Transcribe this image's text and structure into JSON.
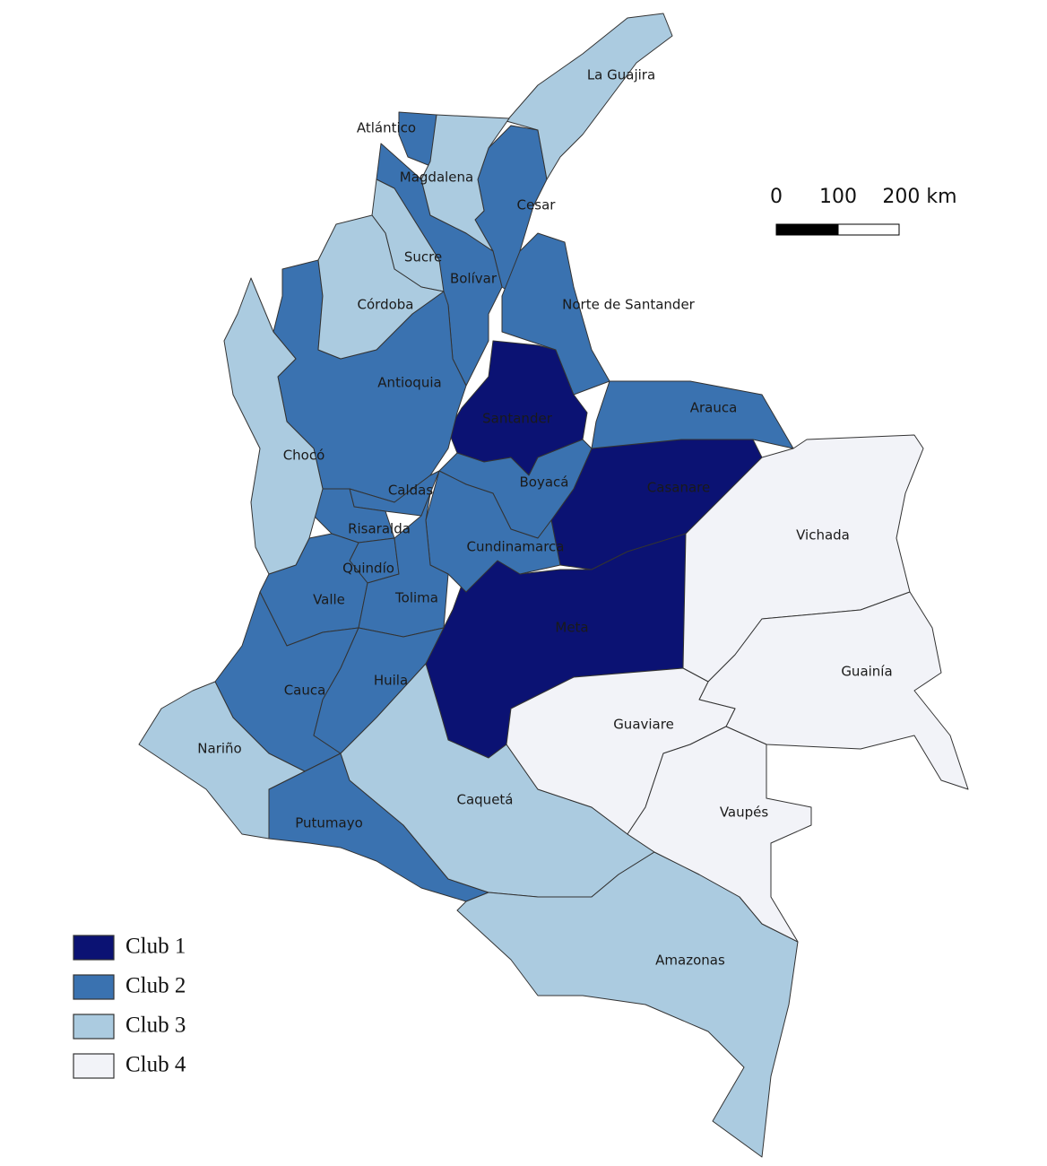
{
  "map": {
    "legend": [
      {
        "label": "Club 1",
        "color": "#0b1273",
        "departments": [
          "Santander",
          "Casanare",
          "Meta"
        ]
      },
      {
        "label": "Club 2",
        "color": "#3a72b0",
        "departments": [
          "Atlántico",
          "Cesar",
          "Bolívar",
          "Norte de Santander",
          "Antioquia",
          "Arauca",
          "Boyacá",
          "Caldas",
          "Risaralda",
          "Cundinamarca",
          "Quindío",
          "Valle",
          "Tolima",
          "Cauca",
          "Huila",
          "Putumayo"
        ]
      },
      {
        "label": "Club 3",
        "color": "#abcbe0",
        "departments": [
          "La Guajira",
          "Magdalena",
          "Sucre",
          "Córdoba",
          "Chocó",
          "Nariño",
          "Caquetá",
          "Amazonas"
        ]
      },
      {
        "label": "Club 4",
        "color": "#f2f3f8",
        "departments": [
          "Vichada",
          "Guainía",
          "Guaviare",
          "Vaupés"
        ]
      }
    ],
    "scale_bar": {
      "labels": [
        "0",
        "100",
        "200 km"
      ]
    }
  }
}
